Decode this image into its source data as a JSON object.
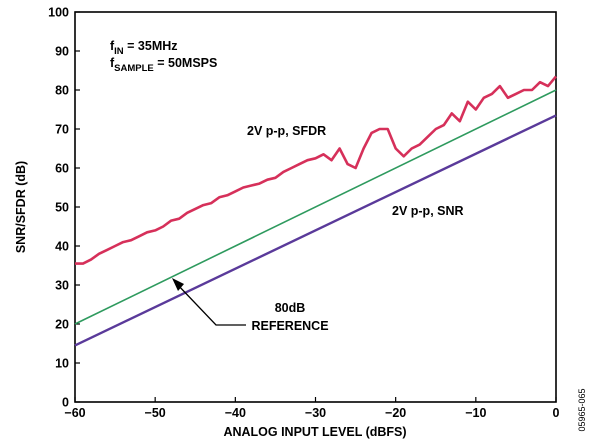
{
  "chart_data": {
    "type": "line",
    "title": "",
    "xlabel": "ANALOG INPUT LEVEL (dBFS)",
    "ylabel": "SNR/SFDR (dB)",
    "xlim": [
      -60,
      0
    ],
    "ylim": [
      0,
      100
    ],
    "x_ticks": [
      -60,
      -50,
      -40,
      -30,
      -20,
      -10,
      0
    ],
    "x_tick_labels": [
      "−60",
      "−50",
      "−40",
      "−30",
      "−20",
      "−10",
      "0"
    ],
    "y_ticks": [
      0,
      10,
      20,
      30,
      40,
      50,
      60,
      70,
      80,
      90,
      100
    ],
    "y_tick_labels": [
      "0",
      "10",
      "20",
      "30",
      "40",
      "50",
      "60",
      "70",
      "80",
      "90",
      "100"
    ],
    "grid": false,
    "annotations": {
      "conditions_line1": {
        "main": "f",
        "sub": "IN",
        "rest": " = 35MHz"
      },
      "conditions_line2": {
        "main": "f",
        "sub": "SAMPLE",
        "rest": " = 50MSPS"
      },
      "sfdr_label": "2V p-p, SFDR",
      "snr_label": "2V p-p, SNR",
      "reference_label_line1": "80dB",
      "reference_label_line2": "REFERENCE"
    },
    "figure_id": "05965-065",
    "series": [
      {
        "label": "2V p-p, SFDR",
        "color": "#d6305a",
        "x": [
          -60,
          -59,
          -58,
          -57,
          -56,
          -55,
          -54,
          -53,
          -52,
          -51,
          -50,
          -49,
          -48,
          -47,
          -46,
          -45,
          -44,
          -43,
          -42,
          -41,
          -40,
          -39,
          -38,
          -37,
          -36,
          -35,
          -34,
          -33,
          -32,
          -31,
          -30,
          -29,
          -28,
          -27,
          -26,
          -25,
          -24,
          -23,
          -22,
          -21,
          -20,
          -19,
          -18,
          -17,
          -16,
          -15,
          -14,
          -13,
          -12,
          -11,
          -10,
          -9,
          -8,
          -7,
          -6,
          -5,
          -4,
          -3,
          -2,
          -1,
          0
        ],
        "y": [
          35.5,
          35.5,
          36.5,
          38,
          39,
          40,
          41,
          41.5,
          42.5,
          43.5,
          44,
          45,
          46.5,
          47,
          48.5,
          49.5,
          50.5,
          51,
          52.5,
          53,
          54,
          55,
          55.5,
          56,
          57,
          57.5,
          59,
          60,
          61,
          62,
          62.5,
          63.5,
          62,
          65,
          61,
          60,
          65,
          69,
          70,
          70,
          65,
          63,
          65,
          66,
          68,
          70,
          71,
          74,
          72,
          77,
          75,
          78,
          79,
          81,
          78,
          79,
          80,
          80,
          82,
          81,
          83.5
        ]
      },
      {
        "label": "2V p-p, SNR",
        "color": "#5a3a9a",
        "x": [
          -60,
          0
        ],
        "y": [
          14.5,
          73.5
        ]
      },
      {
        "label": "80dB REFERENCE",
        "color": "#2e9a5e",
        "x": [
          -60,
          0
        ],
        "y": [
          20,
          80
        ]
      }
    ]
  }
}
